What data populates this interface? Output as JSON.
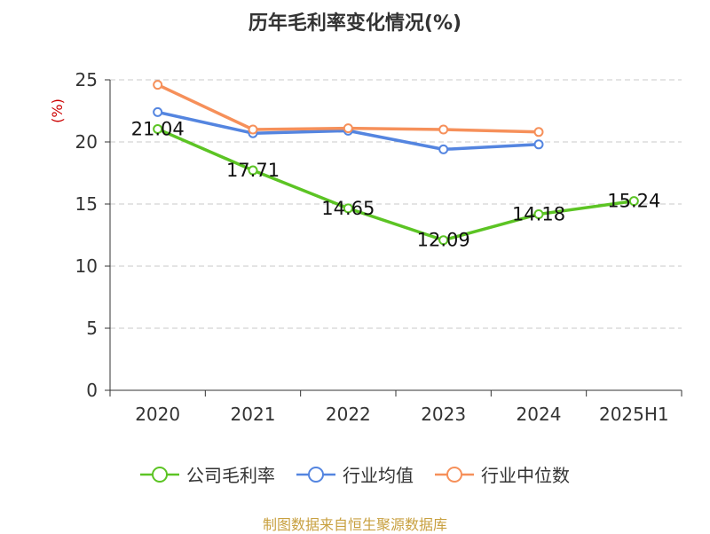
{
  "chart_data": {
    "type": "line",
    "title": "历年毛利率变化情况(%)",
    "ylabel": "(%)",
    "xlabel": "",
    "categories": [
      "2020",
      "2021",
      "2022",
      "2023",
      "2024",
      "2025H1"
    ],
    "ylim": [
      0,
      25
    ],
    "yticks": [
      "0",
      "5",
      "10",
      "15",
      "20",
      "25"
    ],
    "grid": true,
    "legend_position": "bottom",
    "series": [
      {
        "name": "公司毛利率",
        "color": "#5cc424",
        "values": [
          21.04,
          17.71,
          14.65,
          12.09,
          14.18,
          15.24
        ],
        "show_labels": true
      },
      {
        "name": "行业均值",
        "color": "#5485e0",
        "values": [
          22.4,
          20.7,
          20.9,
          19.4,
          19.8,
          null
        ],
        "show_labels": false
      },
      {
        "name": "行业中位数",
        "color": "#f6905a",
        "values": [
          24.6,
          21.0,
          21.1,
          21.0,
          20.8,
          null
        ],
        "show_labels": false
      }
    ]
  },
  "source_text": "制图数据来自恒生聚源数据库",
  "colors": {
    "axis": "#333333",
    "grid": "#c8c8c8",
    "ylabel": "#cc0000",
    "source": "#c8a040"
  }
}
